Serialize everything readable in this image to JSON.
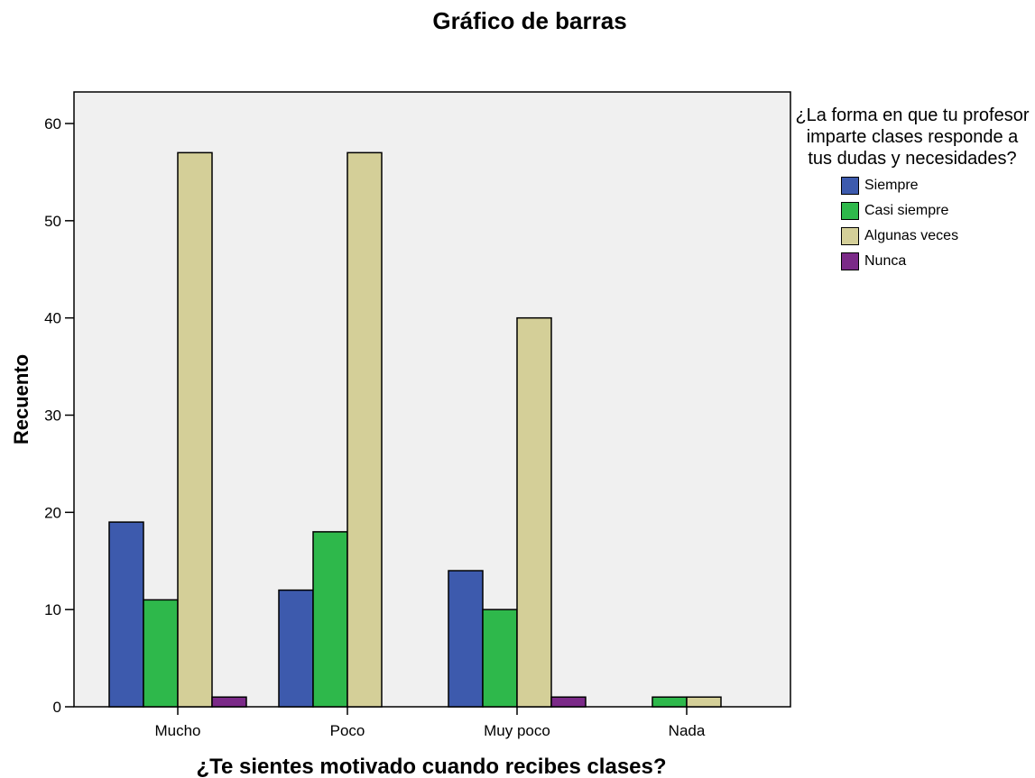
{
  "chart_data": {
    "type": "bar",
    "title": "Gráfico de barras",
    "xlabel": "¿Te sientes motivado cuando recibes clases?",
    "ylabel": "Recuento",
    "categories": [
      "Mucho",
      "Poco",
      "Muy poco",
      "Nada"
    ],
    "ylim": [
      0,
      65
    ],
    "yticks": [
      0,
      10,
      20,
      30,
      40,
      50,
      60
    ],
    "legend_title": "¿La forma en que tu profesor imparte clases responde a tus dudas y necesidades?",
    "legend_position": "right",
    "plot_background": "#f0f0f0",
    "series": [
      {
        "name": "Siempre",
        "color": "#3d5aad",
        "values": [
          19,
          12,
          14,
          null
        ]
      },
      {
        "name": "Casi siempre",
        "color": "#2eb84b",
        "values": [
          11,
          18,
          10,
          1
        ]
      },
      {
        "name": "Algunas veces",
        "color": "#d4cf98",
        "values": [
          57,
          57,
          40,
          1
        ]
      },
      {
        "name": "Nunca",
        "color": "#7b2a88",
        "values": [
          1,
          null,
          1,
          null
        ]
      }
    ]
  }
}
